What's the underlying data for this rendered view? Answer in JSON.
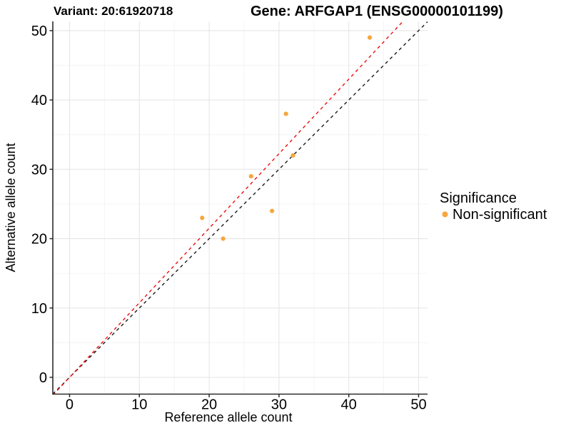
{
  "titles": {
    "variant": "Variant: 20:61920718",
    "gene": "Gene: ARFGAP1 (ENSG00000101199)"
  },
  "legend": {
    "title": "Significance",
    "position": "right",
    "items": [
      {
        "label": "Non-significant",
        "color": "#F7A63E",
        "marker": "dot"
      }
    ]
  },
  "chart_data": {
    "type": "scatter",
    "xlabel": "Reference allele count",
    "ylabel": "Alternative allele count",
    "xlim": [
      -2.4,
      51.28
    ],
    "ylim": [
      -2.42,
      51.33
    ],
    "x_ticks": [
      0,
      10,
      20,
      30,
      40,
      50
    ],
    "y_ticks": [
      0,
      10,
      20,
      30,
      40,
      50
    ],
    "minor_tick_step": 5,
    "grid": true,
    "background": "#ffffff",
    "grid_major_color": "#E6E6E6",
    "grid_minor_color": "#F3F3F3",
    "axis_line_color": "#2B2B2B",
    "series": [
      {
        "name": "Non-significant",
        "color": "#F7A63E",
        "points": [
          [
            19,
            23
          ],
          [
            22,
            20
          ],
          [
            26,
            29
          ],
          [
            29,
            24
          ],
          [
            31,
            38
          ],
          [
            32,
            32
          ],
          [
            43,
            49
          ]
        ]
      }
    ],
    "lines": [
      {
        "name": "identity",
        "slope": 1,
        "intercept": 0,
        "color": "#1A1A1A",
        "style": "dashed"
      },
      {
        "name": "fit",
        "slope": 1.075,
        "intercept": 0,
        "color": "#EC0E0E",
        "style": "dashed"
      }
    ]
  }
}
